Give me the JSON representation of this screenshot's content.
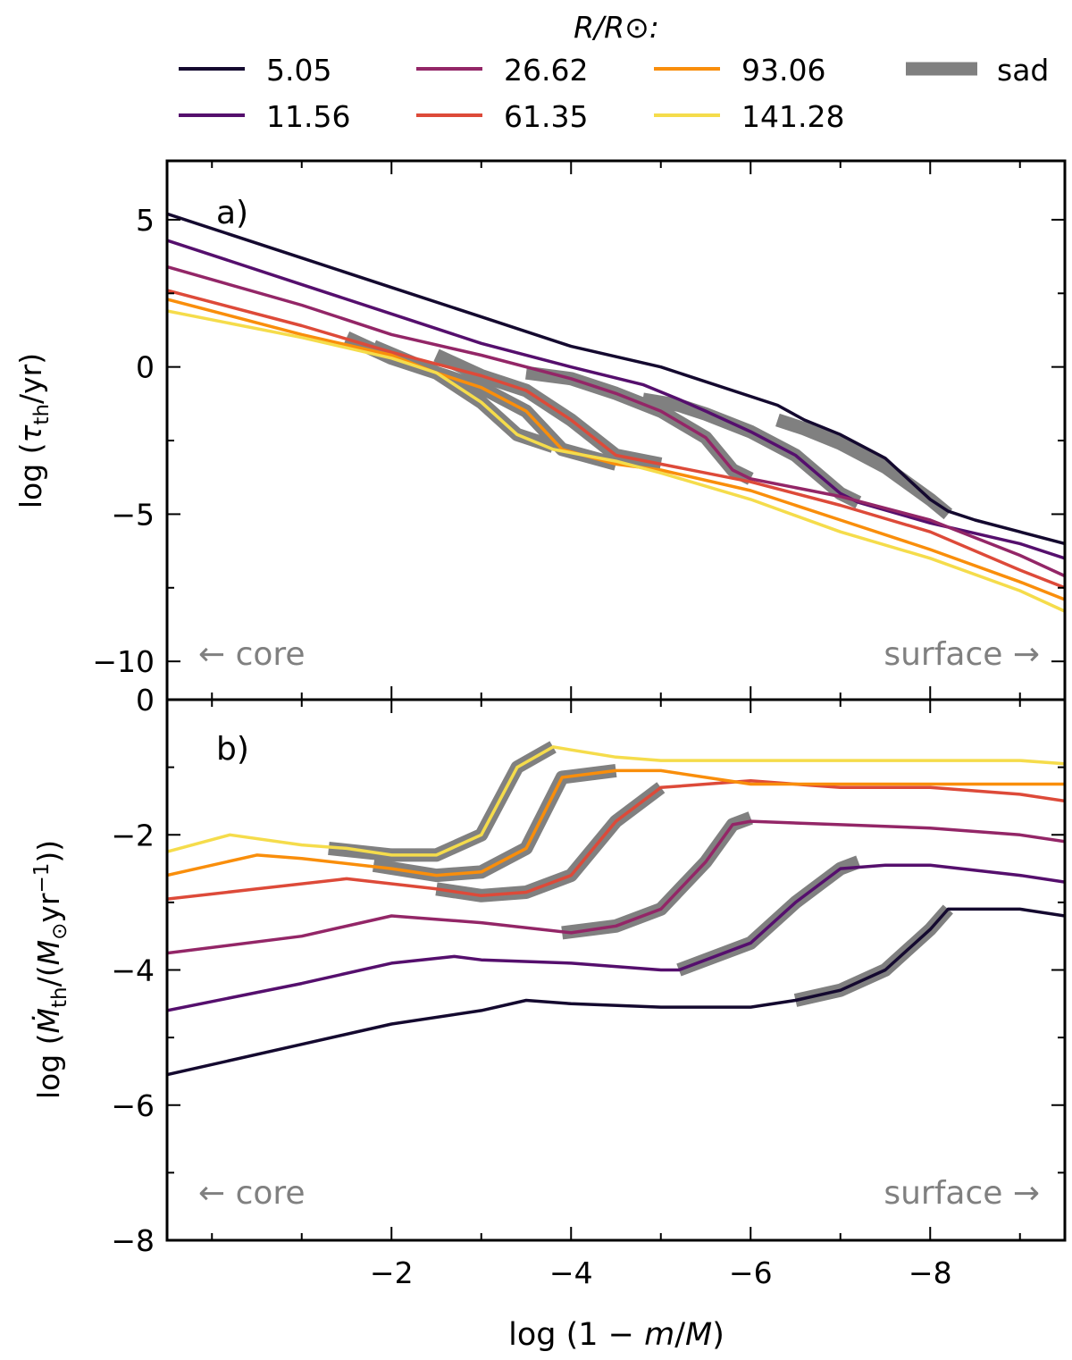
{
  "chart_data": {
    "type": "line",
    "legend": {
      "title": "R/R⊙:",
      "position": "top",
      "entries": [
        {
          "label": "5.05",
          "color": "#14092f"
        },
        {
          "label": "11.56",
          "color": "#550f6d"
        },
        {
          "label": "26.62",
          "color": "#932667"
        },
        {
          "label": "61.35",
          "color": "#dd4a39"
        },
        {
          "label": "93.06",
          "color": "#f98e0b"
        },
        {
          "label": "141.28",
          "color": "#f5dc4b"
        },
        {
          "label": "sad",
          "color": "#808080"
        }
      ]
    },
    "xlabel": "log (1 − m/M)",
    "xlim": [
      0.5,
      -9.5
    ],
    "xticks": [
      -2,
      -4,
      -6,
      -8
    ],
    "xtick_labels": [
      "−2",
      "−4",
      "−6",
      "−8"
    ],
    "panels": [
      {
        "id": "a",
        "label": "a)",
        "ylabel": "log (τth/yr)",
        "ylim": [
          -11.3,
          7.0
        ],
        "yticks": [
          5,
          0,
          -5,
          -10
        ],
        "ytick_labels": [
          "5",
          "0",
          "−5",
          "−10"
        ],
        "annotations": [
          "← core",
          "surface →"
        ],
        "series": [
          {
            "name": "5.05",
            "x": [
              0.5,
              -1,
              -2,
              -3,
              -4,
              -5,
              -6.3,
              -6.6,
              -7,
              -7.5,
              -8,
              -8.2,
              -8.5,
              -9,
              -9.5
            ],
            "y": [
              5.2,
              3.7,
              2.7,
              1.7,
              0.7,
              0,
              -1.3,
              -1.8,
              -2.3,
              -3.1,
              -4.5,
              -4.9,
              -5.2,
              -5.6,
              -6.0
            ]
          },
          {
            "name": "11.56",
            "x": [
              0.5,
              -1,
              -2,
              -3,
              -4,
              -4.8,
              -5.2,
              -5.5,
              -6,
              -6.5,
              -7,
              -7.2,
              -8,
              -9,
              -9.5
            ],
            "y": [
              4.3,
              2.8,
              1.8,
              0.8,
              0.0,
              -0.6,
              -1.1,
              -1.5,
              -2.2,
              -3.0,
              -4.3,
              -4.6,
              -5.3,
              -6.0,
              -6.5
            ]
          },
          {
            "name": "26.62",
            "x": [
              0.5,
              -1,
              -2,
              -3,
              -4,
              -4.5,
              -5,
              -5.5,
              -5.8,
              -6,
              -7,
              -8,
              -9,
              -9.5
            ],
            "y": [
              3.4,
              2.1,
              1.1,
              0.4,
              -0.4,
              -0.9,
              -1.5,
              -2.4,
              -3.5,
              -3.8,
              -4.4,
              -5.2,
              -6.4,
              -7.1
            ]
          },
          {
            "name": "61.35",
            "x": [
              0.5,
              -1,
              -2,
              -3,
              -3.5,
              -4,
              -4.5,
              -5,
              -6,
              -7,
              -8,
              -9,
              -9.5
            ],
            "y": [
              2.6,
              1.4,
              0.5,
              -0.3,
              -0.8,
              -1.8,
              -3.0,
              -3.3,
              -3.9,
              -4.7,
              -5.6,
              -6.9,
              -7.5
            ]
          },
          {
            "name": "93.06",
            "x": [
              0.5,
              -1,
              -2,
              -2.5,
              -3,
              -3.5,
              -3.9,
              -4.5,
              -5,
              -6,
              -7,
              -8,
              -9,
              -9.5
            ],
            "y": [
              2.3,
              1.1,
              0.4,
              -0.2,
              -0.7,
              -1.5,
              -2.8,
              -3.3,
              -3.5,
              -4.2,
              -5.2,
              -6.2,
              -7.3,
              -7.9
            ]
          },
          {
            "name": "141.28",
            "x": [
              0.5,
              -1,
              -2,
              -2.5,
              -3,
              -3.4,
              -3.8,
              -4.5,
              -5,
              -6,
              -7,
              -8,
              -9,
              -9.5
            ],
            "y": [
              1.9,
              1.0,
              0.3,
              -0.2,
              -1.2,
              -2.3,
              -2.8,
              -3.2,
              -3.6,
              -4.5,
              -5.6,
              -6.5,
              -7.6,
              -8.3
            ]
          }
        ],
        "sad": [
          {
            "series": "5.05",
            "x": [
              -6.3,
              -6.6,
              -7,
              -7.5,
              -8,
              -8.2
            ],
            "y": [
              -1.8,
              -2.1,
              -2.6,
              -3.4,
              -4.5,
              -5.0
            ]
          },
          {
            "series": "11.56",
            "x": [
              -4.8,
              -5.2,
              -5.5,
              -6,
              -6.5,
              -7,
              -7.2
            ],
            "y": [
              -1.1,
              -1.3,
              -1.6,
              -2.2,
              -3.0,
              -4.3,
              -4.6
            ]
          },
          {
            "series": "26.62",
            "x": [
              -3.5,
              -4,
              -4.5,
              -5,
              -5.5,
              -5.8,
              -6
            ],
            "y": [
              -0.2,
              -0.4,
              -0.9,
              -1.5,
              -2.4,
              -3.5,
              -3.8
            ]
          },
          {
            "series": "61.35",
            "x": [
              -2.5,
              -3,
              -3.5,
              -4,
              -4.5,
              -5
            ],
            "y": [
              0.4,
              -0.3,
              -0.8,
              -1.8,
              -3.0,
              -3.3
            ]
          },
          {
            "series": "93.06",
            "x": [
              -1.8,
              -2.5,
              -3,
              -3.5,
              -3.9,
              -4.5
            ],
            "y": [
              0.7,
              -0.2,
              -0.7,
              -1.5,
              -2.8,
              -3.3
            ]
          },
          {
            "series": "141.28",
            "x": [
              -1.5,
              -2,
              -2.5,
              -3,
              -3.4,
              -3.8
            ],
            "y": [
              1.0,
              0.3,
              -0.2,
              -1.2,
              -2.3,
              -2.7
            ]
          }
        ]
      },
      {
        "id": "b",
        "label": "b)",
        "ylabel": "log (Ṁth/(M⊙yr⁻¹))",
        "ylim": [
          -8.0,
          0.0
        ],
        "yticks": [
          0,
          -2,
          -4,
          -6,
          -8
        ],
        "ytick_labels": [
          "0",
          "−2",
          "−4",
          "−6",
          "−8"
        ],
        "annotations": [
          "← core",
          "surface →"
        ],
        "series": [
          {
            "name": "5.05",
            "x": [
              0.5,
              -1,
              -2,
              -3,
              -3.5,
              -4,
              -5,
              -6,
              -6.5,
              -7,
              -7.5,
              -8,
              -8.2,
              -9,
              -9.5
            ],
            "y": [
              -5.55,
              -5.1,
              -4.8,
              -4.6,
              -4.45,
              -4.5,
              -4.55,
              -4.55,
              -4.45,
              -4.3,
              -4.0,
              -3.4,
              -3.1,
              -3.1,
              -3.2
            ]
          },
          {
            "name": "11.56",
            "x": [
              0.5,
              -1,
              -2,
              -2.7,
              -3,
              -4,
              -5,
              -5.2,
              -6,
              -6.5,
              -7,
              -7.5,
              -8,
              -9,
              -9.5
            ],
            "y": [
              -4.6,
              -4.2,
              -3.9,
              -3.8,
              -3.85,
              -3.9,
              -4.0,
              -4.0,
              -3.6,
              -3.0,
              -2.5,
              -2.45,
              -2.45,
              -2.6,
              -2.7
            ]
          },
          {
            "name": "26.62",
            "x": [
              0.5,
              -1,
              -2,
              -3,
              -4,
              -4.5,
              -5,
              -5.5,
              -5.8,
              -6,
              -7,
              -8,
              -9,
              -9.5
            ],
            "y": [
              -3.75,
              -3.5,
              -3.2,
              -3.3,
              -3.45,
              -3.35,
              -3.1,
              -2.4,
              -1.85,
              -1.8,
              -1.85,
              -1.9,
              -2.0,
              -2.1
            ]
          },
          {
            "name": "61.35",
            "x": [
              0.5,
              -0.5,
              -1.5,
              -2.5,
              -3,
              -3.5,
              -4,
              -4.5,
              -5,
              -6,
              -7,
              -8,
              -9,
              -9.5
            ],
            "y": [
              -2.95,
              -2.8,
              -2.65,
              -2.8,
              -2.9,
              -2.85,
              -2.6,
              -1.8,
              -1.3,
              -1.2,
              -1.3,
              -1.3,
              -1.4,
              -1.5
            ]
          },
          {
            "name": "93.06",
            "x": [
              0.5,
              -0.5,
              -1,
              -2,
              -2.5,
              -3,
              -3.5,
              -3.9,
              -4.5,
              -5,
              -6,
              -7,
              -8,
              -9,
              -9.5
            ],
            "y": [
              -2.6,
              -2.3,
              -2.35,
              -2.5,
              -2.6,
              -2.55,
              -2.2,
              -1.15,
              -1.05,
              -1.05,
              -1.25,
              -1.25,
              -1.25,
              -1.25,
              -1.25
            ]
          },
          {
            "name": "141.28",
            "x": [
              0.5,
              -0.2,
              -1,
              -1.5,
              -2,
              -2.5,
              -3,
              -3.4,
              -3.8,
              -4.5,
              -5,
              -6,
              -7,
              -8,
              -9,
              -9.5
            ],
            "y": [
              -2.25,
              -2.0,
              -2.15,
              -2.2,
              -2.3,
              -2.3,
              -2.0,
              -1.0,
              -0.7,
              -0.85,
              -0.9,
              -0.9,
              -0.9,
              -0.9,
              -0.9,
              -0.95
            ]
          }
        ],
        "sad": [
          {
            "series": "5.05",
            "x": [
              -6.5,
              -7,
              -7.5,
              -8,
              -8.2
            ],
            "y": [
              -4.45,
              -4.3,
              -4.0,
              -3.4,
              -3.1
            ]
          },
          {
            "series": "11.56",
            "x": [
              -5.2,
              -6,
              -6.5,
              -7,
              -7.2
            ],
            "y": [
              -4.0,
              -3.6,
              -3.0,
              -2.5,
              -2.4
            ]
          },
          {
            "series": "26.62",
            "x": [
              -3.9,
              -4.5,
              -5,
              -5.5,
              -5.8,
              -6
            ],
            "y": [
              -3.45,
              -3.35,
              -3.1,
              -2.4,
              -1.85,
              -1.75
            ]
          },
          {
            "series": "61.35",
            "x": [
              -2.5,
              -3,
              -3.5,
              -4,
              -4.5,
              -5
            ],
            "y": [
              -2.8,
              -2.9,
              -2.85,
              -2.6,
              -1.8,
              -1.3
            ]
          },
          {
            "series": "93.06",
            "x": [
              -1.8,
              -2.5,
              -3,
              -3.5,
              -3.9,
              -4.5
            ],
            "y": [
              -2.45,
              -2.6,
              -2.55,
              -2.2,
              -1.15,
              -1.05
            ]
          },
          {
            "series": "141.28",
            "x": [
              -1.3,
              -2,
              -2.5,
              -3,
              -3.4,
              -3.8
            ],
            "y": [
              -2.2,
              -2.3,
              -2.3,
              -2.0,
              -1.0,
              -0.7
            ]
          }
        ]
      }
    ]
  }
}
